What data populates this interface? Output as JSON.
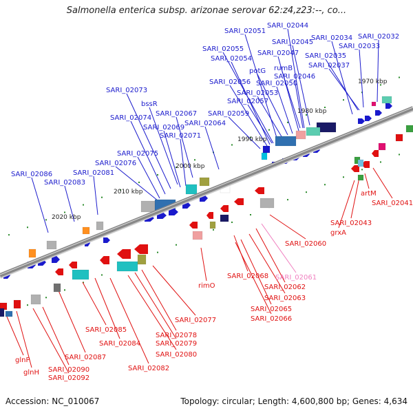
{
  "title": "Salmonella enterica subsp. arizonae serovar 62:z4,z23:--, co...",
  "accession": "Accession: NC_010067",
  "summary": "Topology: circular; Length: 4,600,800 bp; Genes: 4,634",
  "colors": {
    "top_label": "#1a1acc",
    "bottom_label": "#e01010",
    "pink_label": "#f080c0",
    "backbone": "#888888"
  },
  "scale_ticks": [
    "2020 kbp",
    "2010 kbp",
    "2000 kbp",
    "1990 kbp",
    "1980 kbp",
    "1970 kbp"
  ],
  "top_labels": [
    "SARI_02051",
    "SARI_02044",
    "SARI_02045",
    "SARI_02034",
    "SARI_02032",
    "SARI_02055",
    "SARI_02047",
    "SARI_02033",
    "SARI_02054",
    "rumB",
    "SARI_02035",
    "potG",
    "SARI_02046",
    "SARI_02037",
    "SARI_02056",
    "SARI_02050",
    "SARI_02053",
    "SARI_02073",
    "SARI_02057",
    "bssR",
    "SARI_02067",
    "SARI_02059",
    "SARI_02074",
    "SARI_02069",
    "SARI_02064",
    "SARI_02071",
    "SARI_02075",
    "SARI_02076",
    "SARI_02081",
    "SARI_02086",
    "SARI_02083"
  ],
  "bottom_labels": [
    "artM",
    "SARI_02041",
    "grxA",
    "SARI_02043",
    "SARI_02060",
    "rimO",
    "SARI_02068",
    "SARI_02061",
    "SARI_02062",
    "SARI_02063",
    "SARI_02065",
    "SARI_02066",
    "SARI_02077",
    "SARI_02085",
    "SARI_02078",
    "SARI_02084",
    "SARI_02079",
    "SARI_02087",
    "SARI_02080",
    "glnP",
    "SARI_02090",
    "glnH",
    "SARI_02092",
    "SARI_02082"
  ]
}
